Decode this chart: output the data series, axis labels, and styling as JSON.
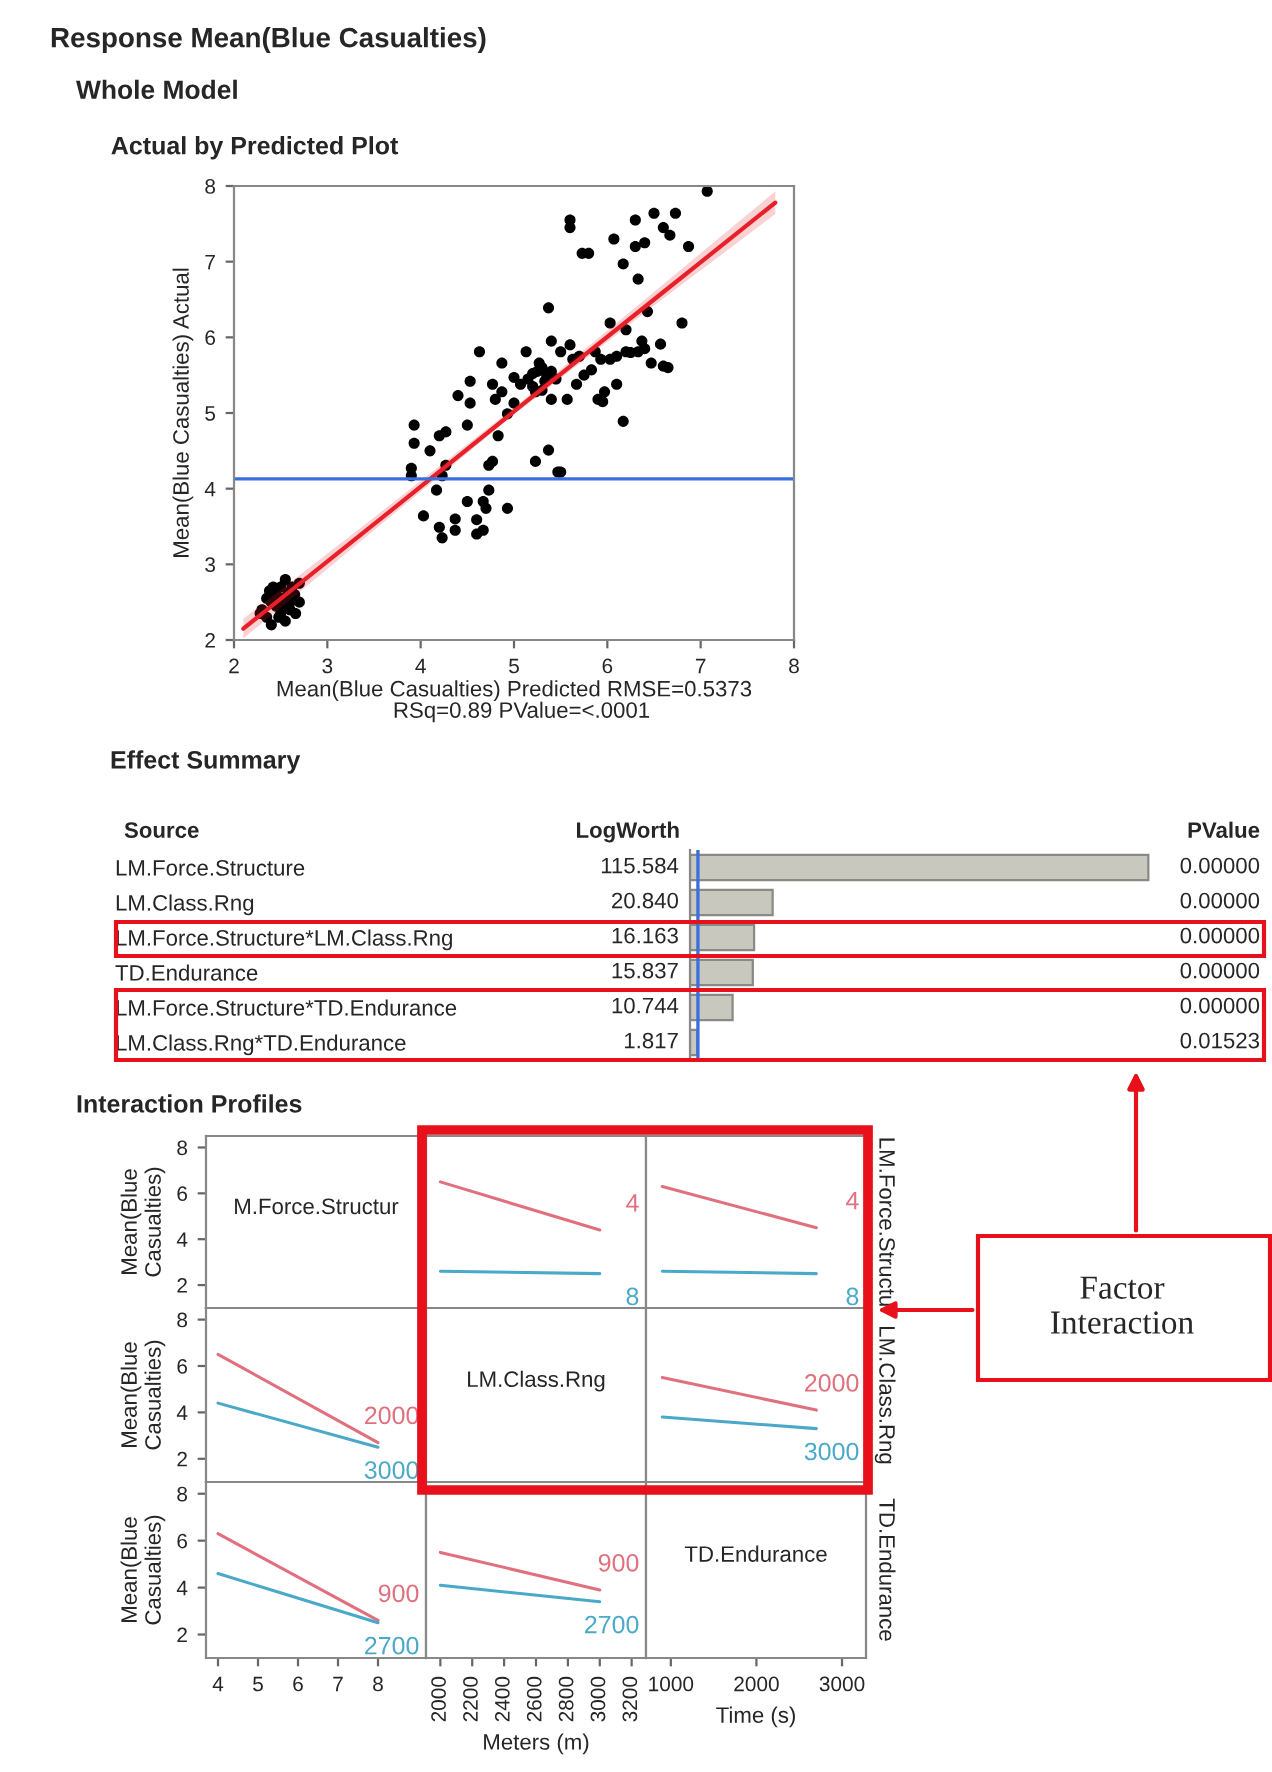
{
  "chart_data": [
    {
      "type": "scatter",
      "title": "Actual by Predicted Plot",
      "xlabel": "Mean(Blue Casualties) Predicted RMSE=0.5373",
      "ylabel": "Mean(Blue Casualties) Actual",
      "annotations": [
        "Response Mean(Blue Casualties)",
        "Whole Model",
        "RSq=0.89 PValue=<.0001"
      ],
      "xlim": [
        2,
        8
      ],
      "ylim": [
        2,
        8
      ],
      "xticks": [
        2,
        3,
        4,
        5,
        6,
        7,
        8
      ],
      "yticks": [
        2,
        3,
        4,
        5,
        6,
        7,
        8
      ],
      "grid": false,
      "ref_lines": [
        {
          "axis": "y",
          "value": 4.13,
          "color": "#3a6fe0"
        }
      ],
      "series": [
        {
          "type": "scatter",
          "marker": "circle",
          "color": "#000000",
          "x": [
            2.3,
            2.35,
            2.4,
            2.45,
            2.5,
            2.55,
            2.6,
            2.65,
            2.7,
            2.4,
            2.5,
            2.55,
            2.6,
            2.45,
            2.35,
            2.5,
            2.62,
            2.42,
            2.28,
            2.58,
            2.48,
            2.7,
            2.38,
            2.52,
            2.66,
            3.93,
            3.93,
            3.9,
            3.9,
            4.03,
            4.1,
            4.17,
            4.2,
            4.27,
            4.23,
            4.27,
            4.2,
            4.23,
            4.37,
            4.37,
            4.4,
            4.5,
            4.53,
            4.53,
            4.5,
            4.6,
            4.6,
            4.63,
            4.67,
            4.67,
            4.7,
            4.73,
            4.73,
            4.77,
            4.8,
            4.77,
            4.83,
            4.87,
            4.87,
            4.93,
            4.93,
            5.0,
            5.0,
            5.07,
            5.13,
            5.2,
            5.23,
            5.23,
            5.27,
            5.33,
            5.37,
            5.37,
            5.4,
            5.4,
            5.47,
            5.5,
            5.5,
            5.57,
            5.6,
            5.6,
            5.63,
            5.67,
            5.73,
            5.8,
            5.83,
            5.87,
            5.9,
            5.93,
            5.97,
            6.03,
            6.03,
            6.07,
            6.1,
            6.17,
            6.17,
            6.2,
            6.2,
            6.3,
            6.3,
            6.33,
            6.33,
            6.37,
            6.4,
            6.43,
            6.47,
            6.5,
            6.57,
            6.6,
            6.6,
            6.67,
            6.73,
            6.8,
            6.87,
            7.07,
            5.25,
            5.3,
            5.35,
            5.45,
            5.2,
            5.3,
            5.4,
            5.15,
            5.6,
            5.75,
            5.7,
            5.95,
            6.1,
            6.25,
            6.4,
            6.65
          ],
          "values": [
            2.4,
            2.3,
            2.5,
            2.6,
            2.7,
            2.8,
            2.5,
            2.6,
            2.75,
            2.2,
            2.35,
            2.25,
            2.4,
            2.45,
            2.55,
            2.55,
            2.7,
            2.7,
            2.35,
            2.62,
            2.3,
            2.5,
            2.65,
            2.45,
            2.35,
            4.84,
            4.6,
            4.27,
            4.17,
            3.64,
            4.5,
            3.98,
            4.7,
            4.75,
            4.17,
            4.31,
            3.49,
            3.35,
            3.45,
            3.6,
            5.23,
            3.83,
            5.13,
            5.42,
            4.84,
            3.4,
            3.59,
            5.81,
            3.83,
            3.45,
            3.74,
            3.98,
            4.31,
            5.38,
            5.18,
            4.36,
            4.7,
            5.66,
            5.28,
            3.74,
            4.99,
            5.13,
            5.47,
            5.38,
            5.81,
            5.52,
            5.28,
            4.36,
            5.66,
            5.42,
            6.39,
            4.51,
            5.95,
            5.18,
            4.22,
            5.81,
            4.22,
            5.18,
            7.55,
            7.45,
            5.71,
            5.38,
            7.11,
            7.11,
            5.57,
            5.81,
            5.18,
            5.71,
            5.28,
            6.19,
            5.71,
            7.3,
            5.38,
            4.89,
            6.97,
            6.1,
            5.81,
            7.2,
            7.55,
            5.81,
            6.77,
            5.95,
            7.25,
            6.34,
            5.66,
            7.64,
            5.91,
            7.45,
            5.62,
            7.35,
            7.64,
            6.19,
            7.2,
            7.93,
            5.55,
            5.6,
            5.5,
            5.45,
            5.35,
            5.3,
            5.55,
            5.45,
            5.9,
            5.5,
            5.75,
            5.15,
            5.75,
            5.8,
            5.85,
            5.6
          ]
        },
        {
          "type": "line",
          "color": "#e8202a",
          "line_style": "solid",
          "x": [
            2.1,
            3.5,
            5,
            6.5,
            7.8
          ],
          "values": [
            2.15,
            3.53,
            5.02,
            6.5,
            7.78
          ],
          "lower": [
            2.02,
            3.45,
            4.98,
            6.42,
            7.63
          ],
          "upper": [
            2.28,
            3.62,
            5.07,
            6.6,
            7.93
          ]
        }
      ]
    },
    {
      "type": "bar",
      "orientation": "horizontal",
      "title": "Effect Summary",
      "ylabel": "Source",
      "xlabel": "LogWorth",
      "tick_labels": "y",
      "categories": [
        "LM.Force.Structure",
        "LM.Class.Rng",
        "LM.Force.Structure*LM.Class.Rng",
        "TD.Endurance",
        "LM.Force.Structure*TD.Endurance",
        "LM.Class.Rng*TD.Endurance"
      ],
      "values": [
        115.584,
        20.84,
        16.163,
        15.837,
        10.744,
        1.817
      ],
      "value_labels": [
        "115.584",
        "20.840",
        "16.163",
        "15.837",
        "10.744",
        "1.817"
      ],
      "color": "#c8c8bf",
      "xlim": [
        0,
        116
      ],
      "ref_lines": [
        {
          "axis": "x",
          "value": 2,
          "color": "#3a6fe0"
        }
      ],
      "annotations": [
        "PValue",
        "0.00000",
        "0.00000",
        "0.00000",
        "0.00000",
        "0.00000",
        "0.01523"
      ]
    },
    {
      "type": "line",
      "title": "Interaction Profiles",
      "annotations": [
        "M.Force.Structur"
      ],
      "ylabel": "Mean(Blue Casualties)",
      "ylim": [
        1,
        8.5
      ],
      "yticks": [
        2,
        4,
        6,
        8
      ],
      "xlim": [
        3.7,
        9.2
      ],
      "tick_labels": "y"
    },
    {
      "type": "line",
      "x": [
        2000,
        3000
      ],
      "xlim": [
        1910,
        3290
      ],
      "ylim": [
        1,
        8.5
      ],
      "tick_labels": false,
      "series": [
        {
          "name": "4",
          "color": "#e0707e",
          "values": [
            6.5,
            4.4
          ]
        },
        {
          "name": "8",
          "color": "#4aa8c8",
          "values": [
            2.6,
            2.5
          ]
        }
      ]
    },
    {
      "type": "line",
      "x": [
        900,
        2700
      ],
      "xlim": [
        710,
        3280
      ],
      "ylim": [
        1,
        8.5
      ],
      "tick_labels": false,
      "y2label": "LM.Force.Structu",
      "series": [
        {
          "name": "4",
          "color": "#e0707e",
          "values": [
            6.3,
            4.5
          ]
        },
        {
          "name": "8",
          "color": "#4aa8c8",
          "values": [
            2.6,
            2.5
          ]
        }
      ]
    },
    {
      "type": "line",
      "x": [
        4,
        8
      ],
      "xlim": [
        3.7,
        9.2
      ],
      "ylim": [
        1,
        8.5
      ],
      "yticks": [
        2,
        4,
        6,
        8
      ],
      "tick_labels": "y",
      "ylabel": "Mean(Blue Casualties)",
      "series": [
        {
          "name": "2000",
          "color": "#e0707e",
          "values": [
            6.5,
            2.7
          ]
        },
        {
          "name": "3000",
          "color": "#4aa8c8",
          "values": [
            4.4,
            2.5
          ]
        }
      ]
    },
    {
      "type": "line",
      "annotations": [
        "LM.Class.Rng"
      ],
      "xlim": [
        1910,
        3290
      ],
      "ylim": [
        1,
        8.5
      ],
      "tick_labels": false
    },
    {
      "type": "line",
      "x": [
        900,
        2700
      ],
      "xlim": [
        710,
        3280
      ],
      "ylim": [
        1,
        8.5
      ],
      "tick_labels": false,
      "y2label": "LM.Class.Rng",
      "annotations": [
        "Factor Interaction"
      ],
      "series": [
        {
          "name": "2000",
          "color": "#e0707e",
          "values": [
            5.5,
            4.1
          ]
        },
        {
          "name": "3000",
          "color": "#4aa8c8",
          "values": [
            3.8,
            3.3
          ]
        }
      ]
    },
    {
      "type": "line",
      "x": [
        4,
        8
      ],
      "xlim": [
        3.7,
        9.2
      ],
      "ylim": [
        1,
        8.5
      ],
      "xticks": [
        4,
        5,
        6,
        7,
        8
      ],
      "yticks": [
        2,
        4,
        6,
        8
      ],
      "ylabel": "Mean(Blue Casualties)",
      "series": [
        {
          "name": "900",
          "color": "#e0707e",
          "values": [
            6.3,
            2.6
          ]
        },
        {
          "name": "2700",
          "color": "#4aa8c8",
          "values": [
            4.6,
            2.5
          ]
        }
      ]
    },
    {
      "type": "line",
      "x": [
        2000,
        3000
      ],
      "xlim": [
        1910,
        3290
      ],
      "ylim": [
        1,
        8.5
      ],
      "xticks": [
        2000,
        2200,
        2400,
        2600,
        2800,
        3000,
        3200
      ],
      "tick_labels": "x",
      "xlabel": "Meters (m)",
      "series": [
        {
          "name": "900",
          "color": "#e0707e",
          "values": [
            5.5,
            3.9
          ]
        },
        {
          "name": "2700",
          "color": "#4aa8c8",
          "values": [
            4.1,
            3.4
          ]
        }
      ]
    },
    {
      "type": "line",
      "annotations": [
        "TD.Endurance"
      ],
      "xlim": [
        710,
        3280
      ],
      "ylim": [
        1,
        8.5
      ],
      "xticks": [
        1000,
        2000,
        3000
      ],
      "tick_labels": "x",
      "xlabel": "Time (s)",
      "y2label": "TD.Endurance"
    }
  ]
}
